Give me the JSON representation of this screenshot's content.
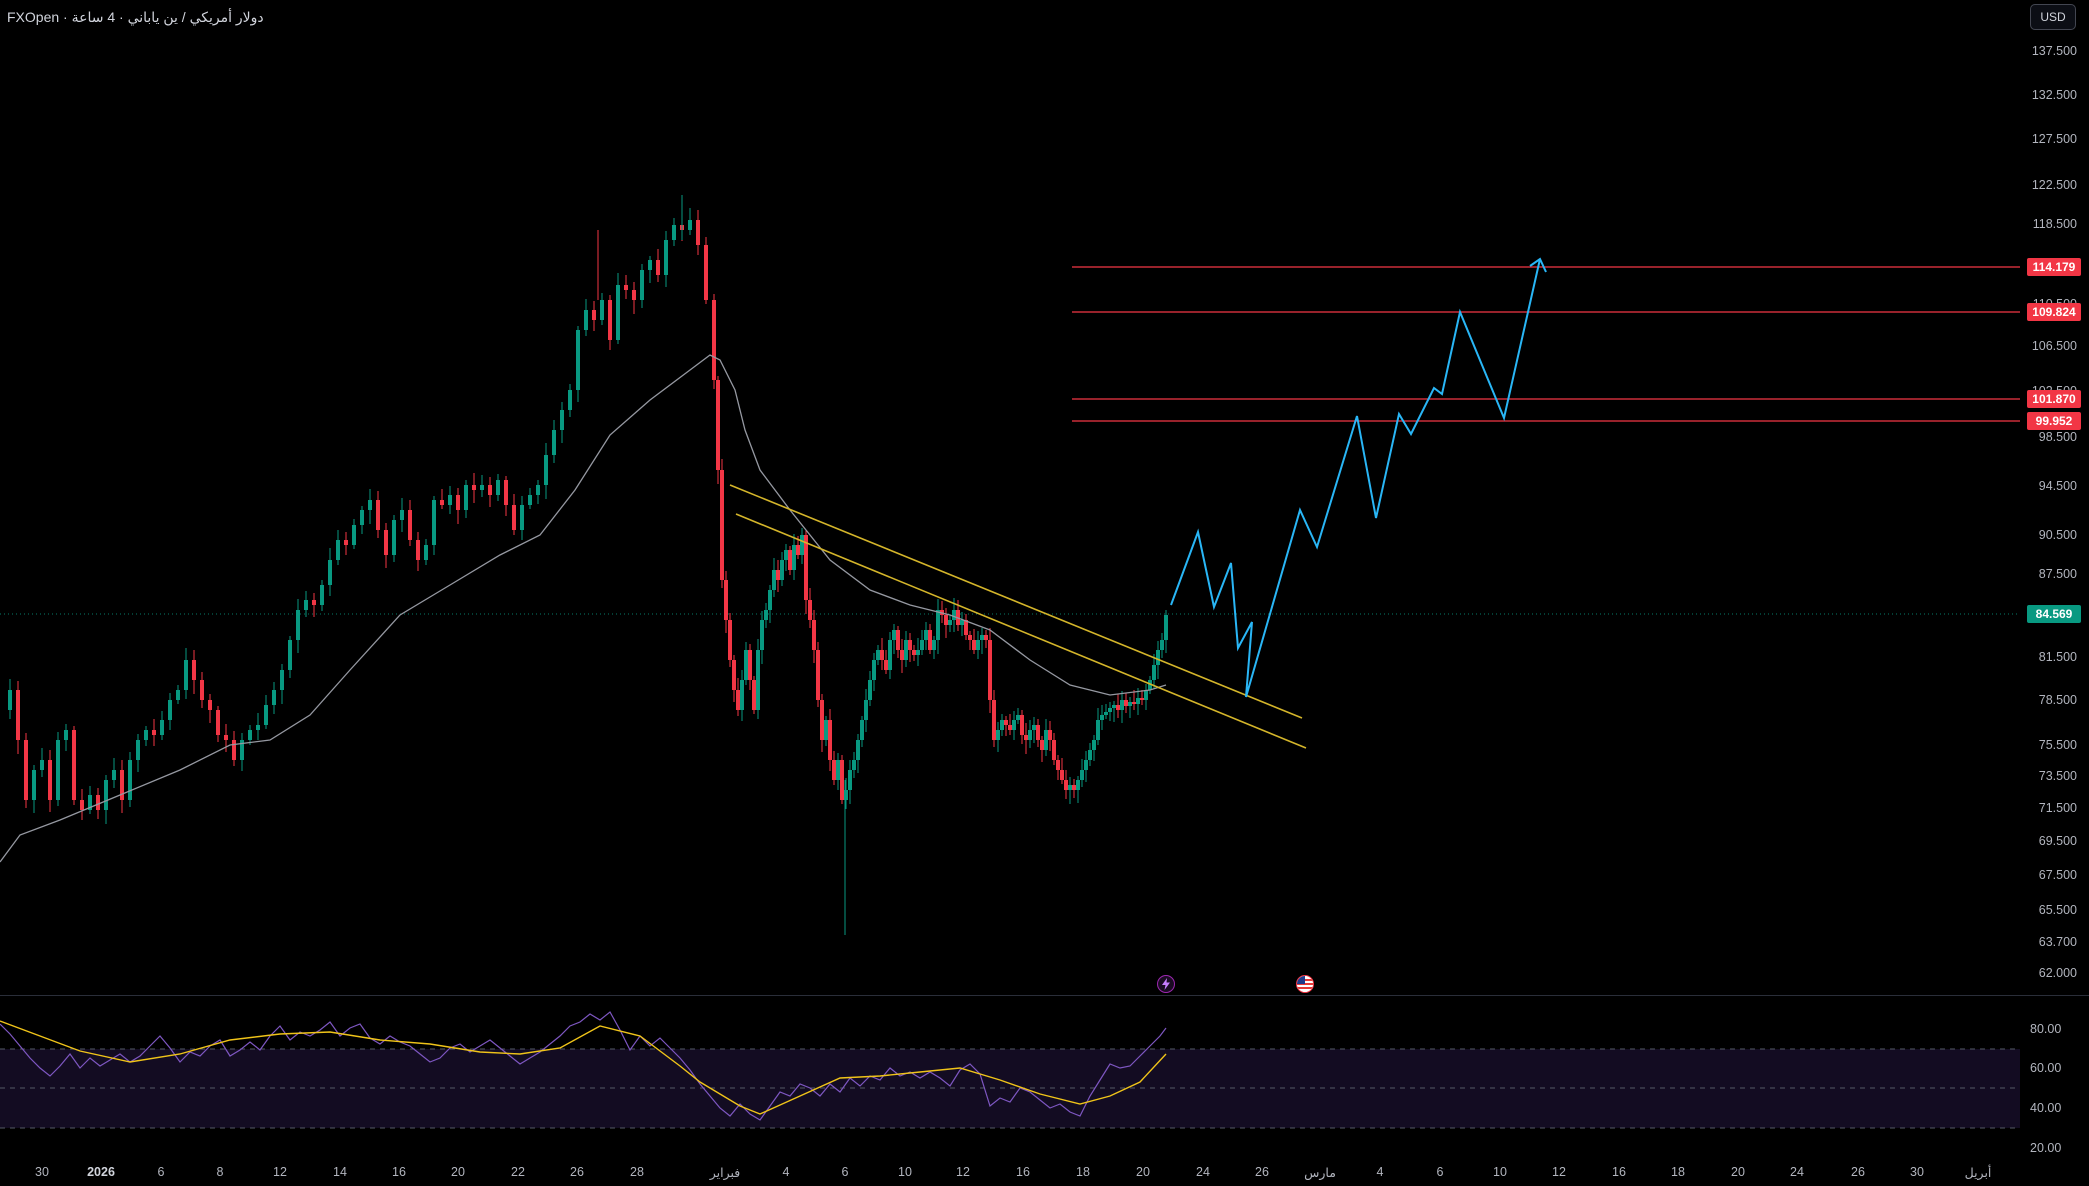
{
  "header": {
    "symbol_title": "FXOpen · دولار أمريكي / ين ياباني · 4 ساعة",
    "currency_button": "USD"
  },
  "colors": {
    "background": "#000000",
    "candle_up": "#089981",
    "candle_down": "#f23645",
    "ma_line": "#9598a1",
    "trendline": "#d4b52a",
    "projection": "#29b6f6",
    "level_line": "#f23645",
    "rsi_line": "#7e57c2",
    "rsi_ma": "#f0c419",
    "current_price_tag": "#089981"
  },
  "price_scale": {
    "labels": [
      "137.500",
      "132.500",
      "127.500",
      "122.500",
      "118.500",
      "106.500",
      "98.500",
      "94.500",
      "90.500",
      "87.500",
      "81.500",
      "78.500",
      "75.500",
      "73.500",
      "71.500",
      "69.500",
      "67.500",
      "65.500",
      "63.700",
      "62.000"
    ],
    "partial_labels": [
      "110.500",
      "102.500"
    ]
  },
  "price_tags": [
    {
      "text": "114.179",
      "kind": "level"
    },
    {
      "text": "109.824",
      "kind": "level"
    },
    {
      "text": "101.870",
      "kind": "level"
    },
    {
      "text": "99.952",
      "kind": "level"
    },
    {
      "text": "84.569",
      "kind": "current"
    }
  ],
  "time_axis": {
    "labels": [
      "30",
      "2026",
      "6",
      "8",
      "12",
      "14",
      "16",
      "20",
      "22",
      "26",
      "28",
      "فبراير",
      "4",
      "6",
      "10",
      "12",
      "16",
      "18",
      "20",
      "24",
      "26",
      "مارس",
      "4",
      "6",
      "10",
      "12",
      "16",
      "18",
      "20",
      "24",
      "26",
      "30",
      "أبريل"
    ]
  },
  "oscillator": {
    "labels": [
      "80.00",
      "60.00",
      "40.00",
      "20.00"
    ]
  },
  "events": [
    {
      "icon": "lightning-event-icon"
    },
    {
      "icon": "us-flag-event-icon"
    }
  ]
}
